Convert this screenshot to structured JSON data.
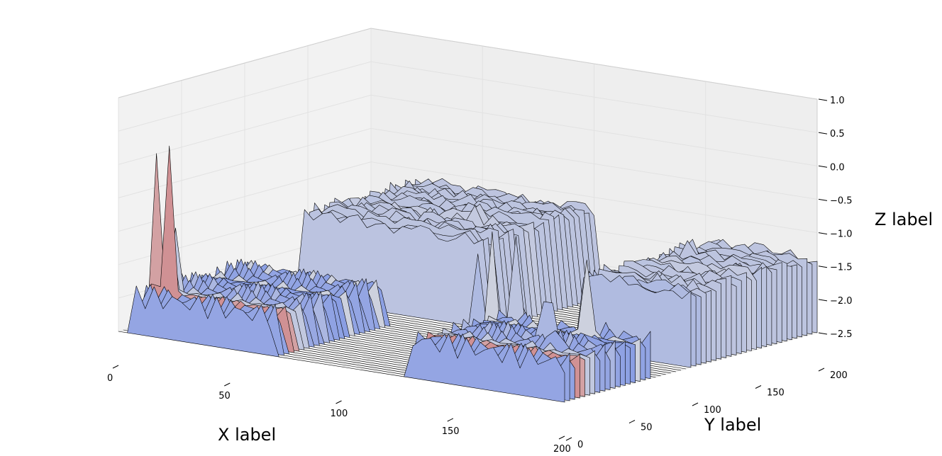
{
  "chart_data": {
    "type": "surface3d",
    "title": "",
    "xlabel": "X label",
    "ylabel": "Y label",
    "zlabel": "Z label",
    "xlim": [
      0,
      200
    ],
    "ylim": [
      0,
      200
    ],
    "zlim": [
      -2.5,
      1.0
    ],
    "x_ticks": [
      0,
      50,
      100,
      150,
      200
    ],
    "y_ticks": [
      0,
      50,
      100,
      150,
      200
    ],
    "z_ticks": [
      1.0,
      0.5,
      0.0,
      -0.5,
      -1.0,
      -1.5,
      -2.0,
      -2.5
    ],
    "x_tick_labels": [
      "0",
      "50",
      "100",
      "150",
      "200"
    ],
    "y_tick_labels": [
      "0",
      "50",
      "100",
      "150",
      "200"
    ],
    "z_tick_labels": [
      "1.0",
      "0.5",
      "0.0",
      "−0.5",
      "−1.0",
      "−1.5",
      "−2.0",
      "−2.5"
    ],
    "grid": true,
    "colormap": "coolwarm",
    "base_level": -2.5,
    "regions": [
      {
        "name": "plateau-back-center",
        "x": [
          20,
          100
        ],
        "y": [
          110,
          200
        ],
        "z": -1.3
      },
      {
        "name": "plateau-right",
        "x": [
          150,
          200
        ],
        "y": [
          100,
          200
        ],
        "z": -1.5
      },
      {
        "name": "ridges-left",
        "x": [
          5,
          70
        ],
        "y": [
          0,
          90
        ],
        "z": -2.1
      },
      {
        "name": "ridges-front",
        "x": [
          130,
          200
        ],
        "y": [
          0,
          70
        ],
        "z": -2.1
      }
    ],
    "peaks": [
      {
        "x": 8,
        "y": 15,
        "z": 0.6
      },
      {
        "x": 12,
        "y": 22,
        "z": 0.4
      },
      {
        "x": 16,
        "y": 12,
        "z": 0.3
      },
      {
        "x": 75,
        "y": 150,
        "z": 1.0
      },
      {
        "x": 100,
        "y": 110,
        "z": -0.3
      },
      {
        "x": 108,
        "y": 125,
        "z": -0.9
      },
      {
        "x": 120,
        "y": 85,
        "z": -0.5
      },
      {
        "x": 160,
        "y": 170,
        "z": 0.1
      },
      {
        "x": 170,
        "y": 40,
        "z": -0.3
      },
      {
        "x": 175,
        "y": 60,
        "z": -0.5
      },
      {
        "x": 180,
        "y": 30,
        "z": -0.9
      },
      {
        "x": 185,
        "y": 50,
        "z": -1.0
      }
    ]
  },
  "colors": {
    "low": "#6582e6",
    "high": "#c03037",
    "pane_back": "#eeeeee",
    "pane_side": "#f2f2f2",
    "pane_floor": "#f7f7f7"
  }
}
